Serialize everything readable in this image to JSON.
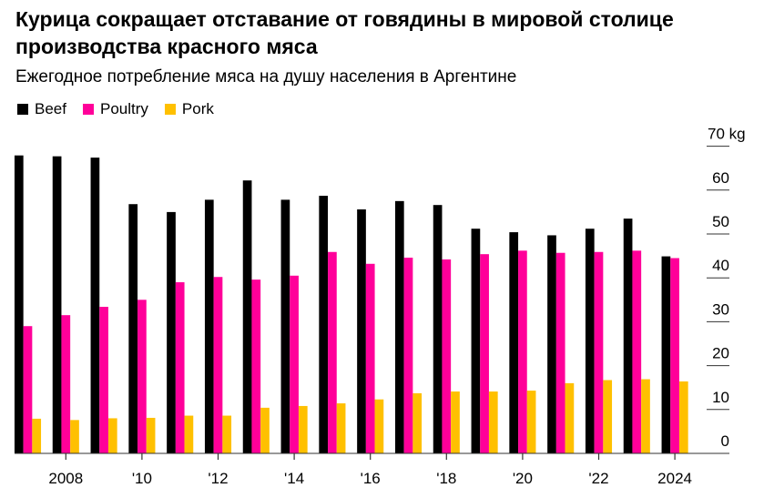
{
  "chart_data": {
    "type": "bar",
    "title": "Курица сокращает отставание от говядины в мировой столице производства красного мяса",
    "subtitle": "Ежегодное потребление мяса на душу населения в Аргентине",
    "xlabel": "",
    "ylabel": "kg",
    "ylim": [
      0,
      70
    ],
    "yticks": [
      0,
      10,
      20,
      30,
      40,
      50,
      60,
      70
    ],
    "ytick_labels": [
      "0",
      "10",
      "20",
      "30",
      "40",
      "50",
      "60",
      "70 kg"
    ],
    "y_axis_position": "right",
    "legend_position": "top-left",
    "categories": [
      2007,
      2008,
      2009,
      2010,
      2011,
      2012,
      2013,
      2014,
      2015,
      2016,
      2017,
      2018,
      2019,
      2020,
      2021,
      2022,
      2023,
      2024
    ],
    "xtick_years": [
      2008,
      2010,
      2012,
      2014,
      2016,
      2018,
      2020,
      2022,
      2024
    ],
    "xtick_labels": [
      "2008",
      "'10",
      "'12",
      "'14",
      "'16",
      "'18",
      "'20",
      "'22",
      "2024"
    ],
    "series": [
      {
        "name": "Beef",
        "color": "#000000",
        "values": [
          67.9,
          67.7,
          67.4,
          56.8,
          55.0,
          57.8,
          62.2,
          57.8,
          58.7,
          55.6,
          57.5,
          56.6,
          51.2,
          50.4,
          49.7,
          51.2,
          53.5,
          44.9
        ]
      },
      {
        "name": "Poultry",
        "color": "#ff0099",
        "values": [
          29.0,
          31.5,
          33.4,
          35.0,
          39.0,
          40.2,
          39.6,
          40.5,
          45.9,
          43.2,
          44.6,
          44.2,
          45.4,
          46.2,
          45.7,
          45.9,
          46.2,
          44.5
        ]
      },
      {
        "name": "Pork",
        "color": "#ffc000",
        "values": [
          7.9,
          7.6,
          8.0,
          8.1,
          8.6,
          8.6,
          10.4,
          10.8,
          11.4,
          12.3,
          13.7,
          14.1,
          14.1,
          14.3,
          16.0,
          16.7,
          16.9,
          16.4
        ]
      }
    ]
  }
}
